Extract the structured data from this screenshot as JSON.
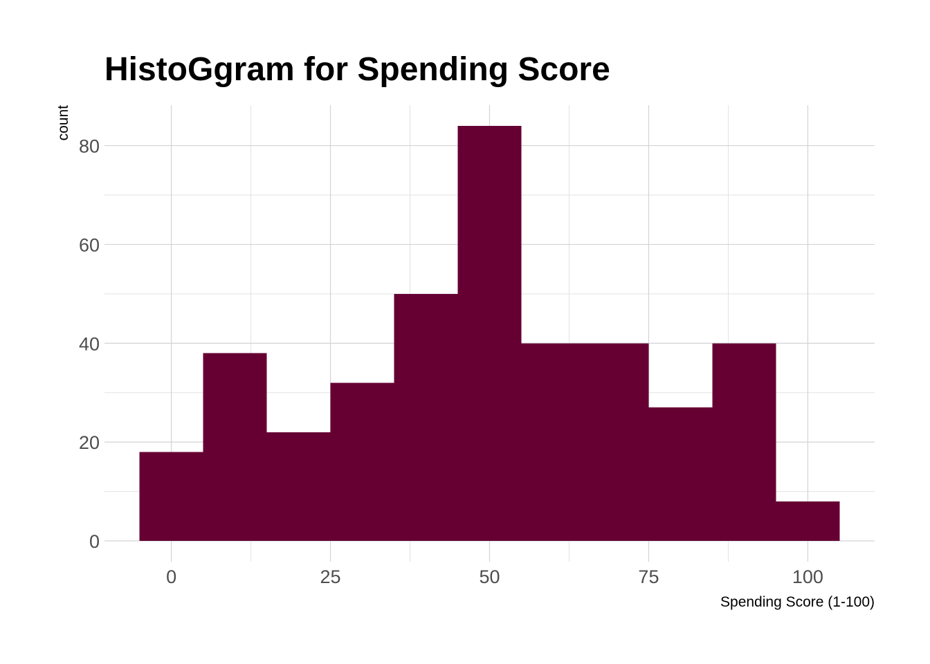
{
  "chart_data": {
    "type": "bar",
    "title": "HistoGgram for Spending Score",
    "xlabel": "Spending Score (1-100)",
    "ylabel": "count",
    "bin_width": 10,
    "bins": [
      {
        "x_start": -5,
        "x_end": 5,
        "count": 18
      },
      {
        "x_start": 5,
        "x_end": 15,
        "count": 38
      },
      {
        "x_start": 15,
        "x_end": 25,
        "count": 22
      },
      {
        "x_start": 25,
        "x_end": 35,
        "count": 32
      },
      {
        "x_start": 35,
        "x_end": 45,
        "count": 50
      },
      {
        "x_start": 45,
        "x_end": 55,
        "count": 84
      },
      {
        "x_start": 55,
        "x_end": 65,
        "count": 40
      },
      {
        "x_start": 65,
        "x_end": 75,
        "count": 40
      },
      {
        "x_start": 75,
        "x_end": 85,
        "count": 27
      },
      {
        "x_start": 85,
        "x_end": 95,
        "count": 40
      },
      {
        "x_start": 95,
        "x_end": 105,
        "count": 8
      }
    ],
    "x_ticks": [
      0,
      25,
      50,
      75,
      100
    ],
    "y_ticks": [
      0,
      20,
      40,
      60,
      80
    ],
    "xlim": [
      -10.5,
      110.5
    ],
    "ylim": [
      -4.2,
      88.2
    ],
    "grid": true,
    "bar_color": "#660033",
    "grid_color": "#d3d3d3",
    "background": "#ffffff"
  }
}
